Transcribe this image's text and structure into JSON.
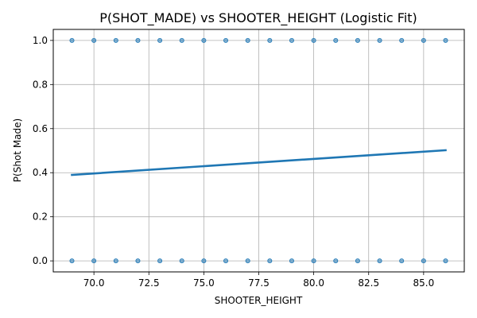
{
  "chart_data": {
    "type": "scatter",
    "title": "P(SHOT_MADE) vs SHOOTER_HEIGHT (Logistic Fit)",
    "xlabel": "SHOOTER_HEIGHT",
    "ylabel": "P(Shot Made)",
    "xlim": [
      68.15,
      86.85
    ],
    "ylim": [
      -0.05,
      1.05
    ],
    "xticks": [
      70.0,
      72.5,
      75.0,
      77.5,
      80.0,
      82.5,
      85.0
    ],
    "xtick_labels": [
      "70.0",
      "72.5",
      "75.0",
      "77.5",
      "80.0",
      "82.5",
      "85.0"
    ],
    "yticks": [
      0.0,
      0.2,
      0.4,
      0.6,
      0.8,
      1.0
    ],
    "ytick_labels": [
      "0.0",
      "0.2",
      "0.4",
      "0.6",
      "0.8",
      "1.0"
    ],
    "grid": true,
    "series": [
      {
        "kind": "points",
        "x": [
          69,
          70,
          71,
          72,
          73,
          74,
          75,
          76,
          77,
          78,
          79,
          80,
          81,
          82,
          83,
          84,
          85,
          86,
          69,
          70,
          71,
          72,
          73,
          74,
          75,
          76,
          77,
          78,
          79,
          80,
          81,
          82,
          83,
          84,
          85,
          86
        ],
        "y": [
          1,
          1,
          1,
          1,
          1,
          1,
          1,
          1,
          1,
          1,
          1,
          1,
          1,
          1,
          1,
          1,
          1,
          1,
          0,
          0,
          0,
          0,
          0,
          0,
          0,
          0,
          0,
          0,
          0,
          0,
          0,
          0,
          0,
          0,
          0,
          0
        ],
        "color": "#1f77b4"
      },
      {
        "kind": "line",
        "x": [
          69,
          86
        ],
        "y": [
          0.39,
          0.502
        ],
        "color": "#1f77b4"
      }
    ]
  }
}
